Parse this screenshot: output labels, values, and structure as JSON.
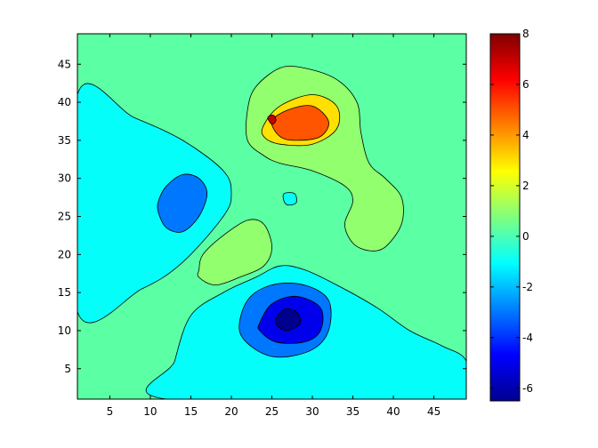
{
  "chart_data": {
    "type": "contourf",
    "title": "",
    "xlabel": "",
    "ylabel": "",
    "xlim": [
      1,
      49
    ],
    "ylim": [
      1,
      49
    ],
    "xticks": [
      5,
      10,
      15,
      20,
      25,
      30,
      35,
      40,
      45
    ],
    "yticks": [
      5,
      10,
      15,
      20,
      25,
      30,
      35,
      40,
      45
    ],
    "x_tick_labels": [
      "5",
      "10",
      "15",
      "20",
      "25",
      "30",
      "35",
      "40",
      "45"
    ],
    "y_tick_labels": [
      "5",
      "10",
      "15",
      "20",
      "25",
      "30",
      "35",
      "40",
      "45"
    ],
    "colormap": "jet",
    "color_limits": [
      -6.5,
      8
    ],
    "colorbar": {
      "location": "right",
      "ticks": [
        -6,
        -4,
        -2,
        0,
        2,
        4,
        6,
        8
      ],
      "tick_labels": [
        "-6",
        "-4",
        "-2",
        "0",
        "2",
        "4",
        "6",
        "8"
      ]
    },
    "contour_levels": [
      -6,
      -4,
      -2,
      0,
      2,
      4,
      6
    ],
    "regions": [
      {
        "level_min": -2,
        "level_max": 0,
        "description": "left wedge",
        "polygon": [
          [
            1,
            41
          ],
          [
            8,
            38
          ],
          [
            14,
            35
          ],
          [
            19,
            31
          ],
          [
            20,
            28
          ],
          [
            19,
            25
          ],
          [
            14,
            19
          ],
          [
            9,
            15.5
          ],
          [
            1,
            12.5
          ]
        ]
      },
      {
        "level_min": -2,
        "level_max": 0,
        "description": "lower band",
        "polygon": [
          [
            12,
            1
          ],
          [
            13,
            6
          ],
          [
            15,
            12
          ],
          [
            19,
            15
          ],
          [
            23,
            17
          ],
          [
            26,
            18.5
          ],
          [
            29,
            18
          ],
          [
            33,
            16
          ],
          [
            38,
            13
          ],
          [
            42,
            10
          ],
          [
            46,
            8
          ],
          [
            49,
            6
          ],
          [
            49,
            1
          ]
        ]
      },
      {
        "level_min": -2,
        "level_max": 0,
        "description": "small patch",
        "polygon": [
          [
            26.5,
            28
          ],
          [
            27.8,
            28
          ],
          [
            28,
            26.8
          ],
          [
            27,
            26.5
          ],
          [
            26.5,
            27
          ]
        ]
      },
      {
        "level_min": -4,
        "level_max": -2,
        "description": "left well",
        "polygon": [
          [
            11,
            27
          ],
          [
            12,
            29
          ],
          [
            14,
            30.5
          ],
          [
            16,
            30
          ],
          [
            17,
            28
          ],
          [
            16,
            25
          ],
          [
            14,
            23
          ],
          [
            12,
            23.5
          ],
          [
            11,
            25.5
          ]
        ]
      },
      {
        "level_min": -4,
        "level_max": -2,
        "description": "lower well",
        "polygon": [
          [
            21,
            10
          ],
          [
            22,
            14
          ],
          [
            25,
            16
          ],
          [
            29,
            16
          ],
          [
            32,
            14
          ],
          [
            32,
            10
          ],
          [
            30,
            7.5
          ],
          [
            26,
            6.5
          ],
          [
            23,
            7.5
          ]
        ]
      },
      {
        "level_min": -6,
        "level_max": -4,
        "description": "lower well core",
        "polygon": [
          [
            23.5,
            11
          ],
          [
            25,
            13.5
          ],
          [
            28,
            14.5
          ],
          [
            31,
            13
          ],
          [
            31,
            10
          ],
          [
            29,
            8.5
          ],
          [
            25.5,
            8.5
          ],
          [
            23.5,
            10
          ]
        ]
      },
      {
        "level_min": -8,
        "level_max": -6,
        "description": "lower well minimum",
        "polygon": [
          [
            25.5,
            11.5
          ],
          [
            26.5,
            12.8
          ],
          [
            28,
            12.5
          ],
          [
            28.5,
            11
          ],
          [
            27,
            10
          ],
          [
            25.8,
            10.5
          ]
        ]
      },
      {
        "level_min": 0,
        "level_max": 2,
        "description": "upper lobe",
        "polygon": [
          [
            22,
            39
          ],
          [
            23,
            42
          ],
          [
            26,
            44.5
          ],
          [
            29,
            44.5
          ],
          [
            33,
            43
          ],
          [
            35.5,
            40
          ],
          [
            36,
            36
          ],
          [
            37,
            32
          ],
          [
            39,
            30
          ],
          [
            41,
            27.5
          ],
          [
            41,
            24
          ],
          [
            39,
            21
          ],
          [
            37,
            20.5
          ],
          [
            35,
            21.5
          ],
          [
            34,
            24
          ],
          [
            35,
            27
          ],
          [
            34,
            29
          ],
          [
            30,
            31
          ],
          [
            26,
            32
          ],
          [
            24,
            33
          ],
          [
            22,
            35
          ]
        ]
      },
      {
        "level_min": 0,
        "level_max": 2,
        "description": "center lobe",
        "polygon": [
          [
            16,
            18
          ],
          [
            16.5,
            20
          ],
          [
            19,
            22.5
          ],
          [
            22,
            24.5
          ],
          [
            24,
            24
          ],
          [
            25,
            21
          ],
          [
            24,
            18.5
          ],
          [
            21,
            17
          ],
          [
            18,
            16
          ],
          [
            16,
            17
          ]
        ]
      },
      {
        "level_min": 2,
        "level_max": 4,
        "description": "peak ring",
        "polygon": [
          [
            24,
            37
          ],
          [
            26,
            39.5
          ],
          [
            30,
            41
          ],
          [
            33,
            39.5
          ],
          [
            33,
            36.5
          ],
          [
            30,
            34.5
          ],
          [
            26,
            34.5
          ],
          [
            24,
            35.5
          ]
        ]
      },
      {
        "level_min": 4,
        "level_max": 6,
        "description": "peak core",
        "polygon": [
          [
            25,
            37.5
          ],
          [
            27,
            39
          ],
          [
            30,
            39.5
          ],
          [
            32,
            37.5
          ],
          [
            31,
            35.5
          ],
          [
            28,
            35
          ],
          [
            26,
            35.5
          ]
        ]
      },
      {
        "level_min": 6,
        "level_max": 8,
        "description": "peak maximum",
        "polygon": [
          [
            24.5,
            38
          ],
          [
            25.2,
            38.3
          ],
          [
            25.5,
            37.6
          ],
          [
            25,
            37.1
          ]
        ]
      }
    ]
  }
}
